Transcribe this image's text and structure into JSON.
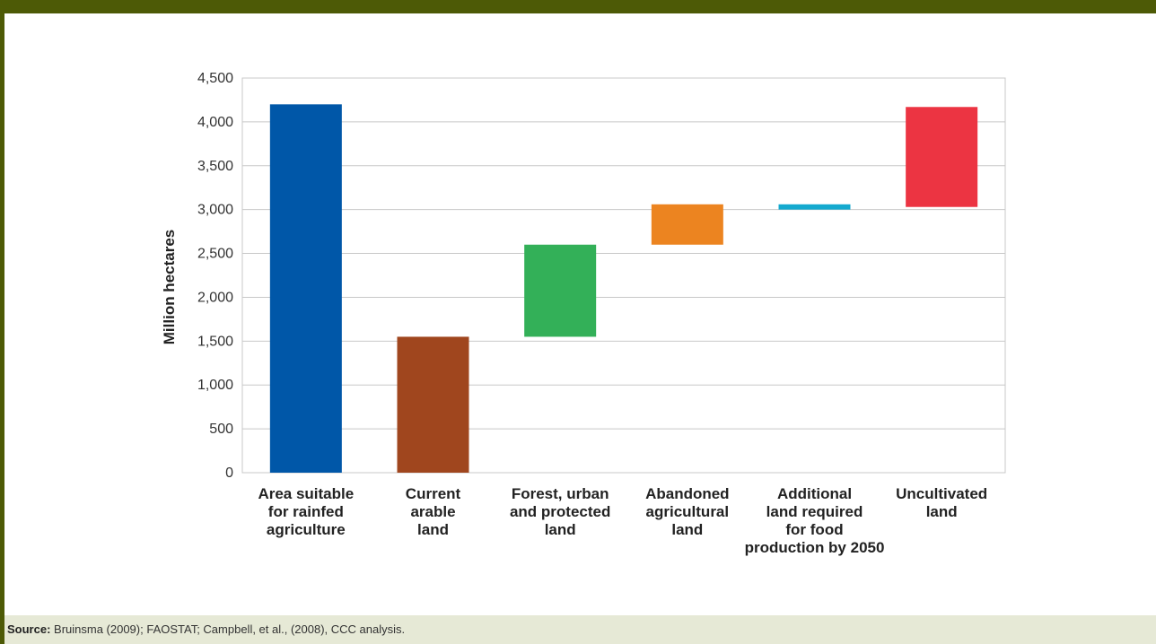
{
  "chart_data": {
    "type": "bar",
    "subtype": "waterfall",
    "ylabel": "Million hectares",
    "ylim": [
      0,
      4500
    ],
    "yticks": [
      "0",
      "500",
      "1,000",
      "1,500",
      "2,000",
      "2,500",
      "3,000",
      "3,500",
      "4,000",
      "4,500"
    ],
    "grid": true,
    "categories": [
      [
        "Area suitable",
        "for rainfed",
        "agriculture"
      ],
      [
        "Current",
        "arable",
        "land"
      ],
      [
        "Forest, urban",
        "and protected",
        "land"
      ],
      [
        "Abandoned",
        "agricultural",
        "land"
      ],
      [
        "Additional",
        "land required",
        "for food",
        "production by 2050"
      ],
      [
        "Uncultivated",
        "land"
      ]
    ],
    "bars": [
      {
        "start": 0,
        "end": 4200,
        "color": "#0057a8"
      },
      {
        "start": 0,
        "end": 1550,
        "color": "#a0461e"
      },
      {
        "start": 1550,
        "end": 2600,
        "color": "#33b058"
      },
      {
        "start": 2600,
        "end": 3060,
        "color": "#ec8420"
      },
      {
        "start": 3000,
        "end": 3060,
        "color": "#14a9cf"
      },
      {
        "start": 3030,
        "end": 4170,
        "color": "#ec3442"
      }
    ]
  },
  "source": {
    "label": "Source:",
    "text": " Bruinsma (2009); FAOSTAT; Campbell, et al., (2008), CCC analysis."
  }
}
